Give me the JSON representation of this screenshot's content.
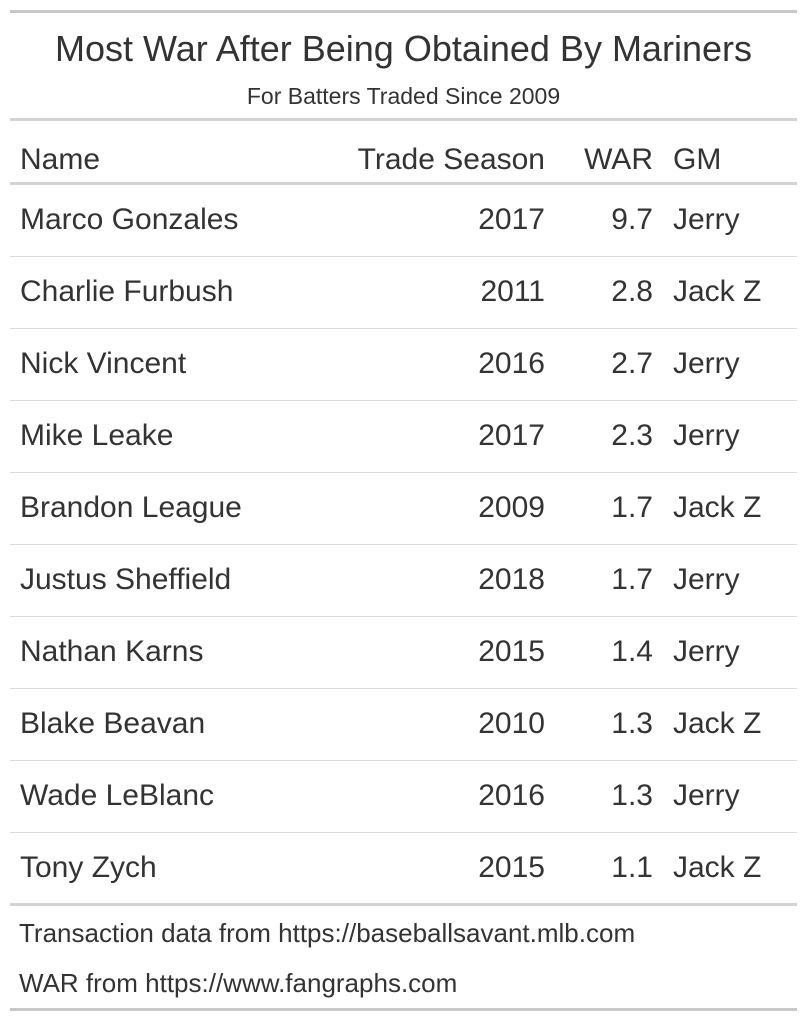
{
  "chart_data": {
    "type": "table",
    "title": "Most War After Being Obtained By Mariners",
    "subtitle": "For Batters Traded Since 2009",
    "columns": [
      "Name",
      "Trade Season",
      "WAR",
      "GM"
    ],
    "rows": [
      [
        "Marco Gonzales",
        "2017",
        "9.7",
        "Jerry"
      ],
      [
        "Charlie Furbush",
        "2011",
        "2.8",
        "Jack Z"
      ],
      [
        "Nick Vincent",
        "2016",
        "2.7",
        "Jerry"
      ],
      [
        "Mike Leake",
        "2017",
        "2.3",
        "Jerry"
      ],
      [
        "Brandon League",
        "2009",
        "1.7",
        "Jack Z"
      ],
      [
        "Justus Sheffield",
        "2018",
        "1.7",
        "Jerry"
      ],
      [
        "Nathan Karns",
        "2015",
        "1.4",
        "Jerry"
      ],
      [
        "Blake Beavan",
        "2010",
        "1.3",
        "Jack Z"
      ],
      [
        "Wade LeBlanc",
        "2016",
        "1.3",
        "Jerry"
      ],
      [
        "Tony Zych",
        "2015",
        "1.1",
        "Jack Z"
      ]
    ],
    "source_notes": [
      "Transaction data from https://baseballsavant.mlb.com",
      "WAR from https://www.fangraphs.com"
    ]
  }
}
